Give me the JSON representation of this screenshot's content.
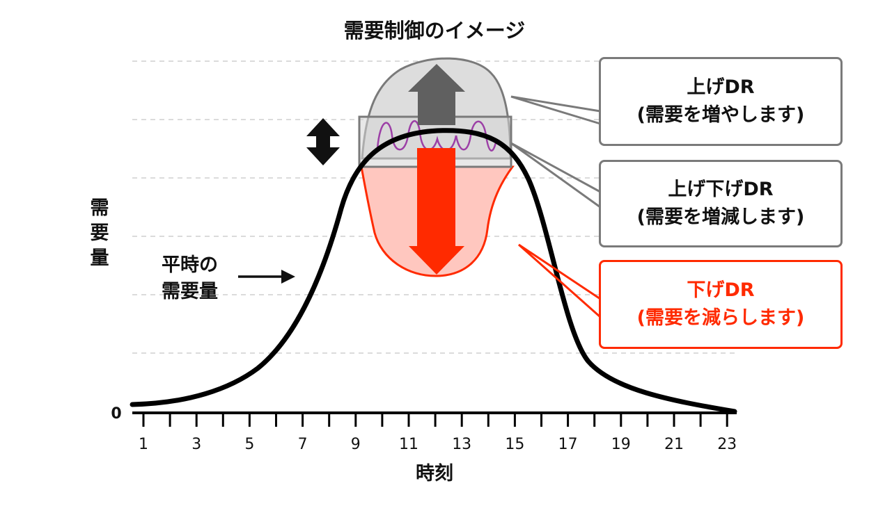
{
  "title": "需要制御のイメージ",
  "y_axis_label": "需要量",
  "x_axis_label": "時刻",
  "zero_label": "0",
  "x_tick_labels": [
    "1",
    "3",
    "5",
    "7",
    "9",
    "11",
    "13",
    "15",
    "17",
    "19",
    "21",
    "23"
  ],
  "normal_demand_label": {
    "line1": "平時の",
    "line2": "需要量"
  },
  "callouts": {
    "up": {
      "line1": "上げDR",
      "line2": "(需要を増やします)"
    },
    "updown": {
      "line1": "上げ下げDR",
      "line2": "(需要を増減します)"
    },
    "down": {
      "line1": "下げDR",
      "line2": "(需要を減らします)"
    }
  },
  "colors": {
    "curve": "#000000",
    "up_region": "#dddddd",
    "up_arrow": "#606060",
    "down_region": "#ffc7bf",
    "down_arrow": "#ff2a00",
    "updown_wave": "#9c3fa6",
    "red_text": "#ff2a00"
  }
}
